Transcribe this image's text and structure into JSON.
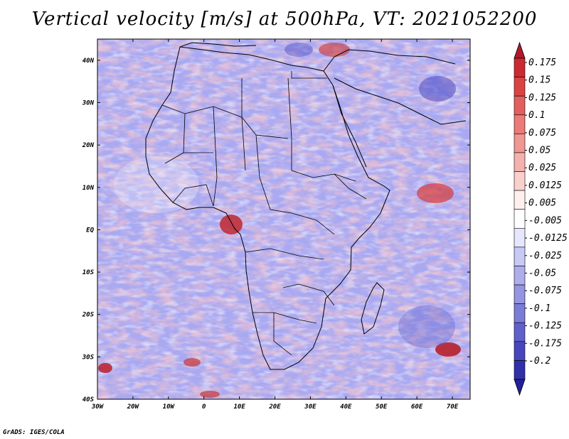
{
  "title": "Vertical velocity [m/s] at 500hPa, VT: 2021052200",
  "footer": "GrADS: IGES/COLA",
  "map": {
    "lon_range": [
      -30,
      75
    ],
    "lat_range": [
      -40,
      45
    ],
    "lon_ticks": [
      {
        "value": -30,
        "label": "30W"
      },
      {
        "value": -20,
        "label": "20W"
      },
      {
        "value": -10,
        "label": "10W"
      },
      {
        "value": 0,
        "label": "0"
      },
      {
        "value": 10,
        "label": "10E"
      },
      {
        "value": 20,
        "label": "20E"
      },
      {
        "value": 30,
        "label": "30E"
      },
      {
        "value": 40,
        "label": "40E"
      },
      {
        "value": 50,
        "label": "50E"
      },
      {
        "value": 60,
        "label": "60E"
      },
      {
        "value": 70,
        "label": "70E"
      }
    ],
    "lat_ticks": [
      {
        "value": 40,
        "label": "40N"
      },
      {
        "value": 30,
        "label": "30N"
      },
      {
        "value": 20,
        "label": "20N"
      },
      {
        "value": 10,
        "label": "10N"
      },
      {
        "value": 0,
        "label": "EQ"
      },
      {
        "value": -10,
        "label": "10S"
      },
      {
        "value": -20,
        "label": "20S"
      },
      {
        "value": -30,
        "label": "30S"
      },
      {
        "value": -40,
        "label": "40S"
      }
    ]
  },
  "colorbar": {
    "labels": [
      "0.175",
      "0.15",
      "0.125",
      "0.1",
      "0.075",
      "0.05",
      "0.025",
      "0.0125",
      "0.005",
      "-0.005",
      "-0.0125",
      "-0.025",
      "-0.05",
      "-0.075",
      "-0.1",
      "-0.125",
      "-0.175",
      "-0.2"
    ],
    "colors": [
      "#b2182b",
      "#cc2a33",
      "#db4343",
      "#e35e5e",
      "#eb7a78",
      "#f09693",
      "#f5b1ae",
      "#fad0cd",
      "#fff0ef",
      "#ffffff",
      "#e6e6ff",
      "#c9c9f5",
      "#aeaeec",
      "#9595e3",
      "#7b7bd8",
      "#6060cc",
      "#4646bd",
      "#3030aa",
      "#22209a"
    ]
  }
}
